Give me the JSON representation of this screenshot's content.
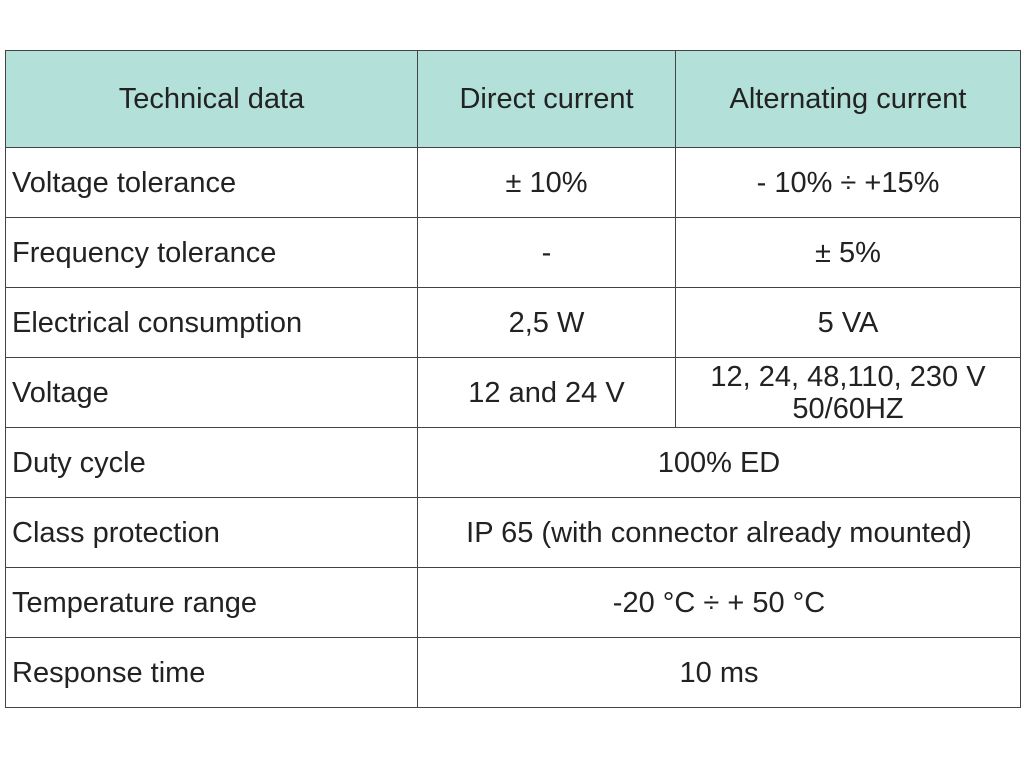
{
  "table": {
    "header": [
      "Technical data",
      "Direct current",
      "Alternating current"
    ],
    "rows": [
      [
        "Voltage tolerance",
        "± 10%",
        "- 10% ÷ +15%"
      ],
      [
        "Frequency tolerance",
        "-",
        "± 5%"
      ],
      [
        "Electrical consumption",
        "2,5 W",
        "5 VA"
      ],
      [
        "Voltage",
        "12 and 24 V",
        [
          "12, 24, 48,110, 230 V",
          "50/60HZ"
        ]
      ],
      [
        "Duty cycle",
        "100% ED"
      ],
      [
        "Class protection",
        "IP 65 (with connector already mounted)"
      ],
      [
        "Temperature range",
        "-20 °C ÷ + 50 °C"
      ],
      [
        "Response time",
        "10 ms"
      ]
    ]
  }
}
